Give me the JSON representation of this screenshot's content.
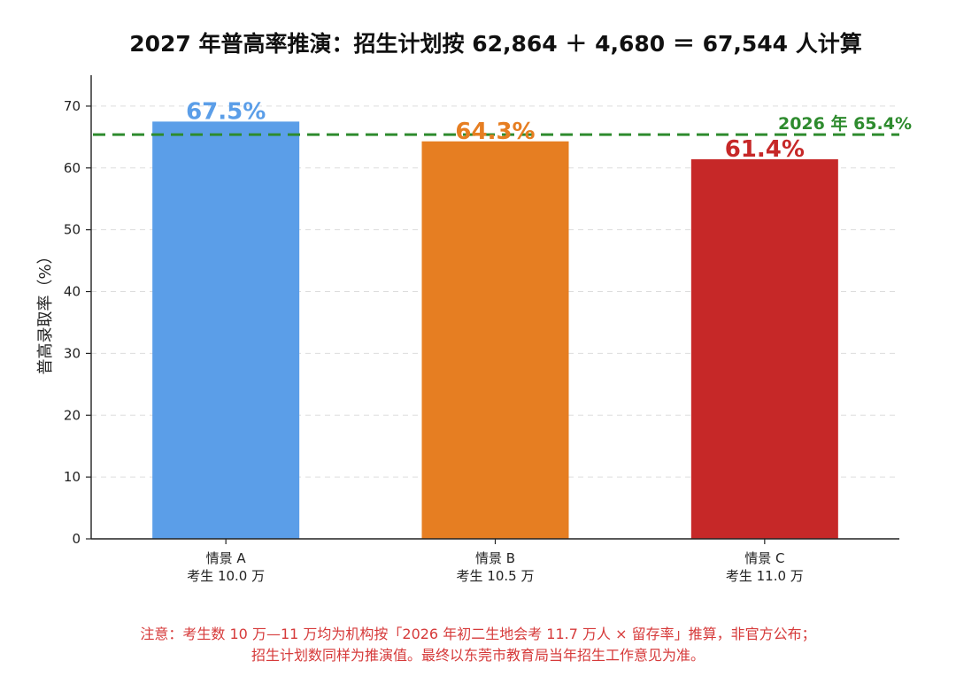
{
  "chart_data": {
    "type": "bar",
    "title": "2027 年普高率推演：招生计划按 62,864 ＋ 4,680 ＝ 67,544 人计算",
    "ylabel": "普高录取率（%）",
    "xlabel": "",
    "ylim": [
      0,
      75
    ],
    "yticks": [
      0,
      10,
      20,
      30,
      40,
      50,
      60,
      70
    ],
    "grid": "y-dashed",
    "categories": [
      {
        "line1": "情景 A",
        "line2": "考生 10.0 万"
      },
      {
        "line1": "情景 B",
        "line2": "考生 10.5 万"
      },
      {
        "line1": "情景 C",
        "line2": "考生 11.0 万"
      }
    ],
    "values": [
      67.5,
      64.3,
      61.4
    ],
    "value_labels": [
      "67.5%",
      "64.3%",
      "61.4%"
    ],
    "colors": [
      "#5b9ee8",
      "#e67e22",
      "#c62828"
    ],
    "reference_line": {
      "value": 65.4,
      "label": "2026 年 65.4%",
      "color": "#2e8b2e",
      "style": "dashed"
    }
  },
  "footnote": {
    "line1": "注意：考生数 10 万—11 万均为机构按「2026 年初二生地会考 11.7 万人 × 留存率」推算，非官方公布；",
    "line2": "招生计划数同样为推演值。最终以东莞市教育局当年招生工作意见为准。"
  }
}
